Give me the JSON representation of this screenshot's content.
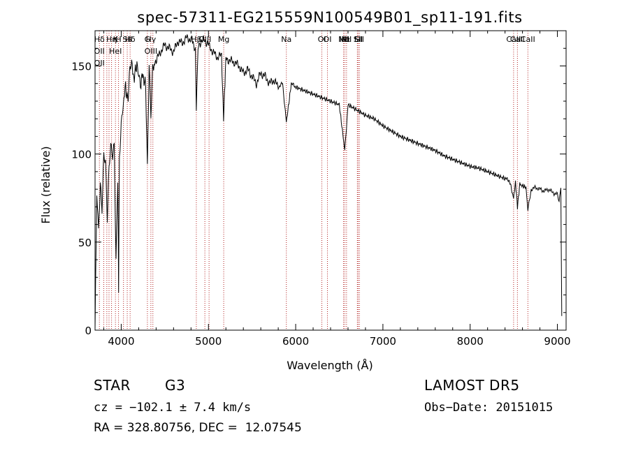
{
  "chart_data": {
    "type": "line",
    "title": "spec-57311-EG215559N100549B01_sp11-191.fits",
    "xlabel": "Wavelength (Å)",
    "ylabel": "Flux (relative)",
    "xlim": [
      3700,
      9100
    ],
    "ylim": [
      0,
      170
    ],
    "x_ticks": [
      4000,
      5000,
      6000,
      7000,
      8000,
      9000
    ],
    "y_ticks": [
      0,
      50,
      100,
      150
    ],
    "grid": false,
    "line_color": "#000000",
    "marker_color": "#b22222",
    "series": [
      {
        "x": [
          3700,
          3720,
          3740,
          3760,
          3780,
          3800,
          3820,
          3840,
          3860,
          3880,
          3900,
          3920,
          3940,
          3960,
          3970,
          3980,
          4000,
          4020,
          4050,
          4080,
          4100,
          4120,
          4150,
          4180,
          4200,
          4220,
          4250,
          4280,
          4300,
          4320,
          4340,
          4360,
          4400,
          4450,
          4500,
          4550,
          4600,
          4650,
          4700,
          4750,
          4800,
          4850,
          4861,
          4880,
          4900,
          4950,
          5000,
          5050,
          5100,
          5150,
          5173,
          5200,
          5250,
          5300,
          5350,
          5400,
          5450,
          5500,
          5550,
          5600,
          5650,
          5700,
          5750,
          5800,
          5850,
          5893,
          5950,
          6000,
          6100,
          6200,
          6300,
          6400,
          6500,
          6563,
          6600,
          6700,
          6800,
          6900,
          7000,
          7100,
          7200,
          7300,
          7400,
          7500,
          7600,
          7700,
          7800,
          7900,
          8000,
          8100,
          8200,
          8300,
          8400,
          8450,
          8498,
          8520,
          8542,
          8570,
          8600,
          8640,
          8662,
          8700,
          8750,
          8800,
          8850,
          8900,
          8950,
          9000,
          9020,
          9040,
          9050
        ],
        "y": [
          0,
          80,
          58,
          85,
          70,
          100,
          95,
          62,
          90,
          103,
          98,
          105,
          40,
          88,
          25,
          100,
          118,
          128,
          138,
          130,
          148,
          150,
          143,
          152,
          148,
          140,
          145,
          138,
          90,
          150,
          120,
          148,
          153,
          158,
          162,
          160,
          158,
          164,
          163,
          166,
          165,
          160,
          125,
          162,
          163,
          165,
          162,
          158,
          155,
          156,
          120,
          154,
          153,
          152,
          150,
          146,
          148,
          144,
          140,
          146,
          144,
          140,
          142,
          138,
          140,
          118,
          140,
          138,
          136,
          134,
          132,
          130,
          128,
          102,
          128,
          125,
          122,
          120,
          116,
          113,
          110,
          108,
          106,
          104,
          102,
          99,
          97,
          95,
          93,
          92,
          90,
          88,
          86,
          85,
          75,
          84,
          70,
          83,
          82,
          81,
          68,
          80,
          81,
          80,
          79,
          80,
          78,
          77,
          72,
          81,
          8
        ]
      }
    ],
    "lines": [
      {
        "x": 3750,
        "labels": [
          "Hδ",
          "OII",
          "OII"
        ]
      },
      {
        "x": 3800,
        "labels": []
      },
      {
        "x": 3835,
        "labels": []
      },
      {
        "x": 3860,
        "labels": []
      },
      {
        "x": 3889,
        "labels": [
          "Hη"
        ]
      },
      {
        "x": 3934,
        "labels": [
          "K",
          "HeI"
        ]
      },
      {
        "x": 3969,
        "labels": [
          "H"
        ]
      },
      {
        "x": 4026,
        "labels": []
      },
      {
        "x": 4069,
        "labels": [
          "SII"
        ]
      },
      {
        "x": 4102,
        "labels": [
          "Hδ"
        ]
      },
      {
        "x": 4300,
        "labels": [
          "G"
        ]
      },
      {
        "x": 4340,
        "labels": [
          "Hγ",
          "OIII"
        ]
      },
      {
        "x": 4363,
        "labels": []
      },
      {
        "x": 4861,
        "labels": [
          "Hβ"
        ]
      },
      {
        "x": 4959,
        "labels": [
          "OIII"
        ]
      },
      {
        "x": 5007,
        "labels": []
      },
      {
        "x": 5175,
        "labels": [
          "Mg"
        ]
      },
      {
        "x": 5893,
        "labels": [
          "Na"
        ]
      },
      {
        "x": 6300,
        "labels": [
          "OI"
        ]
      },
      {
        "x": 6364,
        "labels": [
          "OI"
        ]
      },
      {
        "x": 6548,
        "labels": [
          "NII"
        ]
      },
      {
        "x": 6563,
        "labels": [
          "Hα"
        ]
      },
      {
        "x": 6583,
        "labels": [
          "NII"
        ]
      },
      {
        "x": 6707,
        "labels": [
          "Li"
        ]
      },
      {
        "x": 6716,
        "labels": [
          "SII"
        ]
      },
      {
        "x": 6731,
        "labels": [
          "SII"
        ]
      },
      {
        "x": 8498,
        "labels": [
          "CaII"
        ]
      },
      {
        "x": 8542,
        "labels": [
          "CaII"
        ]
      },
      {
        "x": 8662,
        "labels": [
          "CaII"
        ]
      }
    ]
  },
  "info": {
    "class": "STAR",
    "subclass": "G3",
    "survey": "LAMOST DR5",
    "cz": "cz = −102.1 ± 7.4 km/s",
    "obs_date": "Obs−Date: 20151015",
    "radec": "RA = 328.80756, DEC =  12.07545"
  }
}
